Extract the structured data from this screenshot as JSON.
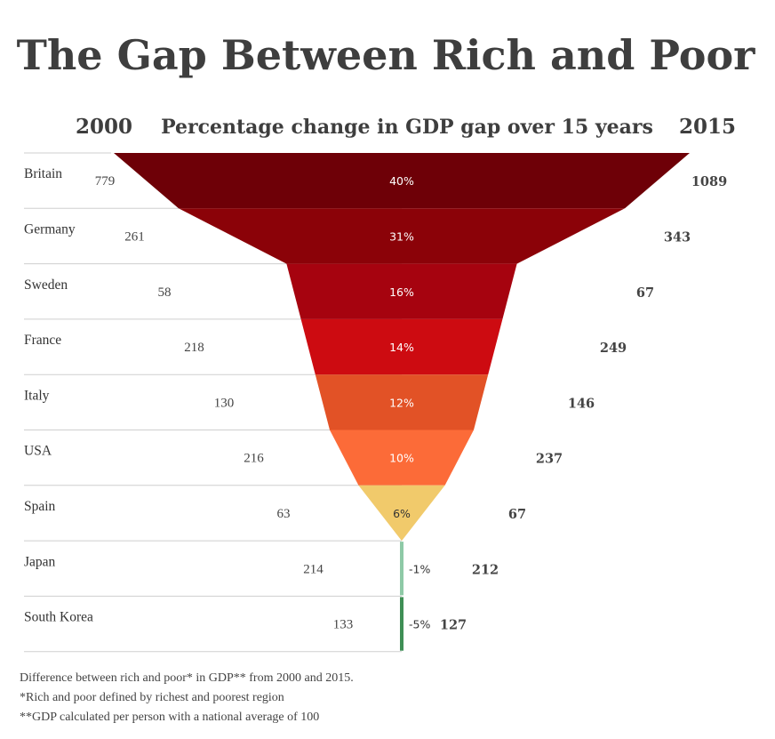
{
  "chart_data": {
    "type": "funnel",
    "title": "The Gap Between Rich and Poor",
    "subtitle": "Percentage change in GDP gap over 15 years",
    "left_label": "2000",
    "right_label": "2015",
    "rows": [
      {
        "country": "Britain",
        "v2000": "779",
        "v2015": "1089",
        "pct_label": "40%",
        "pct": 40,
        "color": "#6e0007"
      },
      {
        "country": "Germany",
        "v2000": "261",
        "v2015": "343",
        "pct_label": "31%",
        "pct": 31,
        "color": "#8b0208"
      },
      {
        "country": "Sweden",
        "v2000": "58",
        "v2015": "67",
        "pct_label": "16%",
        "pct": 16,
        "color": "#a6030f"
      },
      {
        "country": "France",
        "v2000": "218",
        "v2015": "249",
        "pct_label": "14%",
        "pct": 14,
        "color": "#cd0b11"
      },
      {
        "country": "Italy",
        "v2000": "130",
        "v2015": "146",
        "pct_label": "12%",
        "pct": 12,
        "color": "#e25226"
      },
      {
        "country": "USA",
        "v2000": "216",
        "v2015": "237",
        "pct_label": "10%",
        "pct": 10,
        "color": "#fc6b38"
      },
      {
        "country": "Spain",
        "v2000": "63",
        "v2015": "67",
        "pct_label": "6%",
        "pct": 6,
        "color": "#f1ca6b"
      },
      {
        "country": "Japan",
        "v2000": "214",
        "v2015": "212",
        "pct_label": "-1%",
        "pct": -1,
        "color": "#8ec9a6"
      },
      {
        "country": "South Korea",
        "v2000": "133",
        "v2015": "127",
        "pct_label": "-5%",
        "pct": -5,
        "color": "#3f8f55"
      }
    ]
  },
  "notes": [
    "Difference between rich and poor* in GDP** from 2000 and 2015.",
    "*Rich and poor defined by richest and poorest region",
    "**GDP calculated per person with a national average of 100"
  ]
}
